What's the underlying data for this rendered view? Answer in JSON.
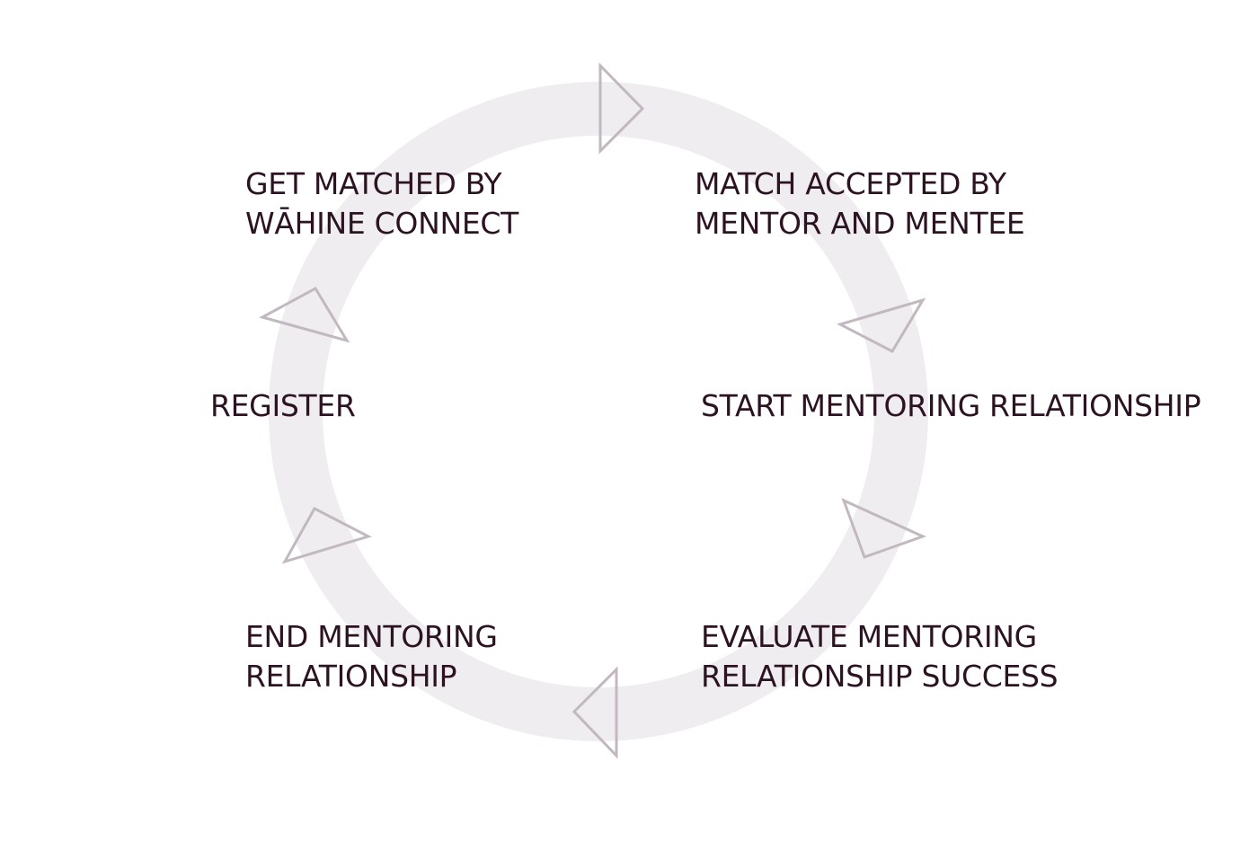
{
  "diagram": {
    "ring_color": "#efedef",
    "arrow_color": "#c2b8c0",
    "text_color": "#2b1322",
    "steps": {
      "get_matched": [
        "GET MATCHED BY",
        "WĀHINE CONNECT"
      ],
      "match_accepted": [
        "MATCH ACCEPTED BY",
        "MENTOR AND MENTEE"
      ],
      "register": [
        "REGISTER"
      ],
      "start": [
        "START MENTORING RELATIONSHIP"
      ],
      "end": [
        "END MENTORING",
        "RELATIONSHIP"
      ],
      "evaluate": [
        "EVALUATE MENTORING",
        "RELATIONSHIP SUCCESS"
      ]
    },
    "arrows": [
      "triangle-arrow-icon",
      "triangle-arrow-icon",
      "triangle-arrow-icon",
      "triangle-arrow-icon",
      "triangle-arrow-icon",
      "triangle-arrow-icon"
    ]
  }
}
